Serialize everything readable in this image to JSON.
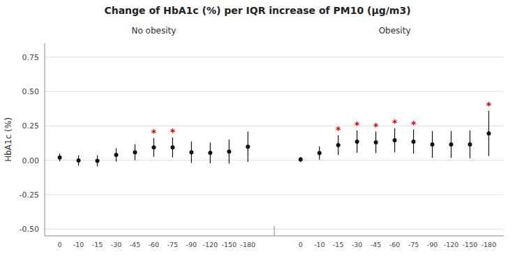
{
  "chart_data": {
    "type": "errorbar",
    "title": "Change of HbA1c (%) per IQR increase of PM10 (μg/m3)",
    "y_label": "HbA1c (%)",
    "categories": [
      "0",
      "-10",
      "-15",
      "-30",
      "-45",
      "-60",
      "-75",
      "-90",
      "-120",
      "-150",
      "-180"
    ],
    "ylim": [
      -0.55,
      0.85
    ],
    "yticks": [
      {
        "value": -0.5,
        "label": "-0.50"
      },
      -0.25,
      {
        "value": 0,
        "label": "0.00"
      },
      0.25,
      {
        "value": 0.5,
        "label": "0.50"
      },
      0.75
    ],
    "grid": true,
    "annotation": {
      "text": "*",
      "color": "#cc0000"
    },
    "series": [
      {
        "name": "No obesity",
        "color": "#111111",
        "values": [
          0.02,
          -0.002,
          -0.005,
          0.038,
          0.058,
          0.093,
          0.093,
          0.058,
          0.053,
          0.063,
          0.098
        ],
        "lower_err": [
          0.028,
          0.038,
          0.04,
          0.048,
          0.058,
          0.068,
          0.072,
          0.078,
          0.075,
          0.088,
          0.11
        ],
        "upper_err": [
          0.028,
          0.038,
          0.04,
          0.048,
          0.058,
          0.068,
          0.072,
          0.078,
          0.075,
          0.088,
          0.11
        ],
        "significant": [
          false,
          false,
          false,
          false,
          false,
          true,
          true,
          false,
          false,
          false,
          false
        ]
      },
      {
        "name": "Obesity",
        "color": "#111111",
        "values": [
          0.005,
          0.052,
          0.11,
          0.135,
          0.13,
          0.145,
          0.135,
          0.115,
          0.115,
          0.115,
          0.195
        ],
        "lower_err": [
          0.018,
          0.048,
          0.072,
          0.082,
          0.078,
          0.088,
          0.088,
          0.098,
          0.098,
          0.102,
          0.165
        ],
        "upper_err": [
          0.018,
          0.048,
          0.072,
          0.082,
          0.078,
          0.088,
          0.088,
          0.098,
          0.098,
          0.102,
          0.165
        ],
        "significant": [
          false,
          false,
          true,
          true,
          true,
          true,
          true,
          false,
          false,
          false,
          true
        ]
      }
    ]
  }
}
